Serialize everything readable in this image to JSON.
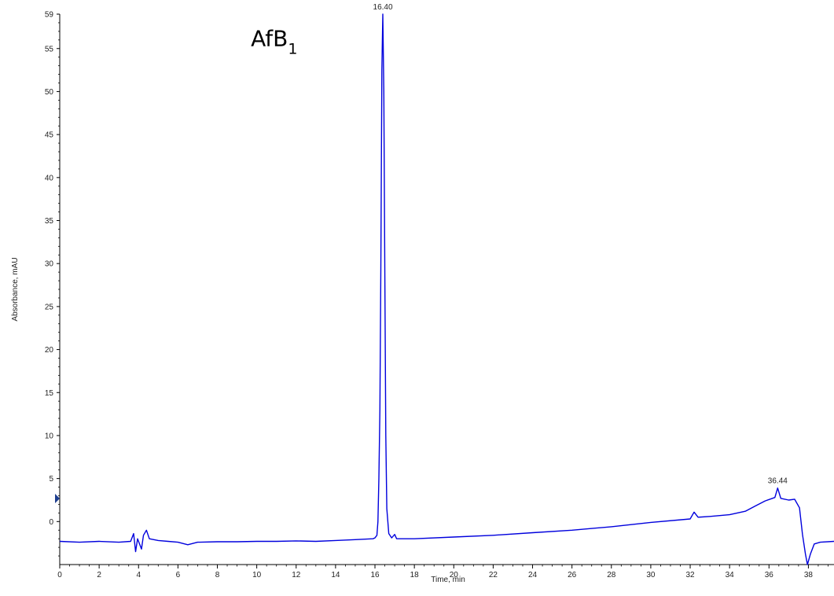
{
  "chart_data": {
    "type": "line",
    "title": "",
    "xlabel": "Time, min",
    "ylabel": "Absorbance, mAU",
    "xlim": [
      0,
      39.3
    ],
    "ylim": [
      -5,
      59
    ],
    "x_ticks": [
      0,
      2,
      4,
      6,
      8,
      10,
      12,
      14,
      16,
      18,
      20,
      22,
      24,
      26,
      28,
      30,
      32,
      34,
      36,
      38
    ],
    "y_ticks": [
      0,
      5,
      10,
      15,
      20,
      25,
      30,
      35,
      40,
      45,
      50,
      55,
      59
    ],
    "grid": false,
    "line_color": "#0000dd",
    "annotations": [
      {
        "text": "AfB",
        "subscript": "1",
        "x": 9.7,
        "y": 55.3
      }
    ],
    "peak_labels": [
      {
        "text": "16.40",
        "x": 16.4,
        "y": 59.0
      },
      {
        "text": "36.44",
        "x": 36.44,
        "y": 3.9
      }
    ],
    "series": [
      {
        "values": [
          [
            0,
            -2.3
          ],
          [
            1,
            -2.4
          ],
          [
            2,
            -2.3
          ],
          [
            3,
            -2.4
          ],
          [
            3.6,
            -2.3
          ],
          [
            3.75,
            -1.4
          ],
          [
            3.85,
            -3.5
          ],
          [
            3.95,
            -2.0
          ],
          [
            4.05,
            -2.6
          ],
          [
            4.15,
            -3.2
          ],
          [
            4.25,
            -1.6
          ],
          [
            4.4,
            -1.0
          ],
          [
            4.55,
            -2.0
          ],
          [
            5.0,
            -2.2
          ],
          [
            5.5,
            -2.3
          ],
          [
            6.0,
            -2.4
          ],
          [
            6.5,
            -2.7
          ],
          [
            7.0,
            -2.4
          ],
          [
            8,
            -2.35
          ],
          [
            9,
            -2.35
          ],
          [
            10,
            -2.3
          ],
          [
            11,
            -2.3
          ],
          [
            12,
            -2.25
          ],
          [
            13,
            -2.3
          ],
          [
            14,
            -2.2
          ],
          [
            15,
            -2.1
          ],
          [
            15.9,
            -2.0
          ],
          [
            16.0,
            -1.9
          ],
          [
            16.1,
            -1.6
          ],
          [
            16.15,
            0.0
          ],
          [
            16.2,
            5.0
          ],
          [
            16.25,
            13.0
          ],
          [
            16.3,
            29.5
          ],
          [
            16.35,
            52.5
          ],
          [
            16.4,
            59.0
          ],
          [
            16.45,
            50.0
          ],
          [
            16.5,
            30.0
          ],
          [
            16.55,
            10.0
          ],
          [
            16.6,
            1.5
          ],
          [
            16.7,
            -1.4
          ],
          [
            16.85,
            -1.9
          ],
          [
            17.0,
            -1.5
          ],
          [
            17.1,
            -2.0
          ],
          [
            18,
            -2.0
          ],
          [
            20,
            -1.8
          ],
          [
            22,
            -1.6
          ],
          [
            24,
            -1.3
          ],
          [
            26,
            -1.0
          ],
          [
            28,
            -0.6
          ],
          [
            30,
            -0.1
          ],
          [
            32.0,
            0.3
          ],
          [
            32.2,
            1.1
          ],
          [
            32.4,
            0.5
          ],
          [
            33,
            0.6
          ],
          [
            34,
            0.8
          ],
          [
            34.8,
            1.2
          ],
          [
            35.3,
            1.8
          ],
          [
            35.8,
            2.4
          ],
          [
            36.3,
            2.8
          ],
          [
            36.44,
            3.9
          ],
          [
            36.6,
            2.7
          ],
          [
            37.0,
            2.5
          ],
          [
            37.3,
            2.6
          ],
          [
            37.55,
            1.6
          ],
          [
            37.7,
            -1.5
          ],
          [
            37.85,
            -3.8
          ],
          [
            37.95,
            -5.0
          ],
          [
            38.1,
            -3.8
          ],
          [
            38.3,
            -2.6
          ],
          [
            38.6,
            -2.4
          ],
          [
            39.3,
            -2.3
          ]
        ]
      }
    ]
  }
}
